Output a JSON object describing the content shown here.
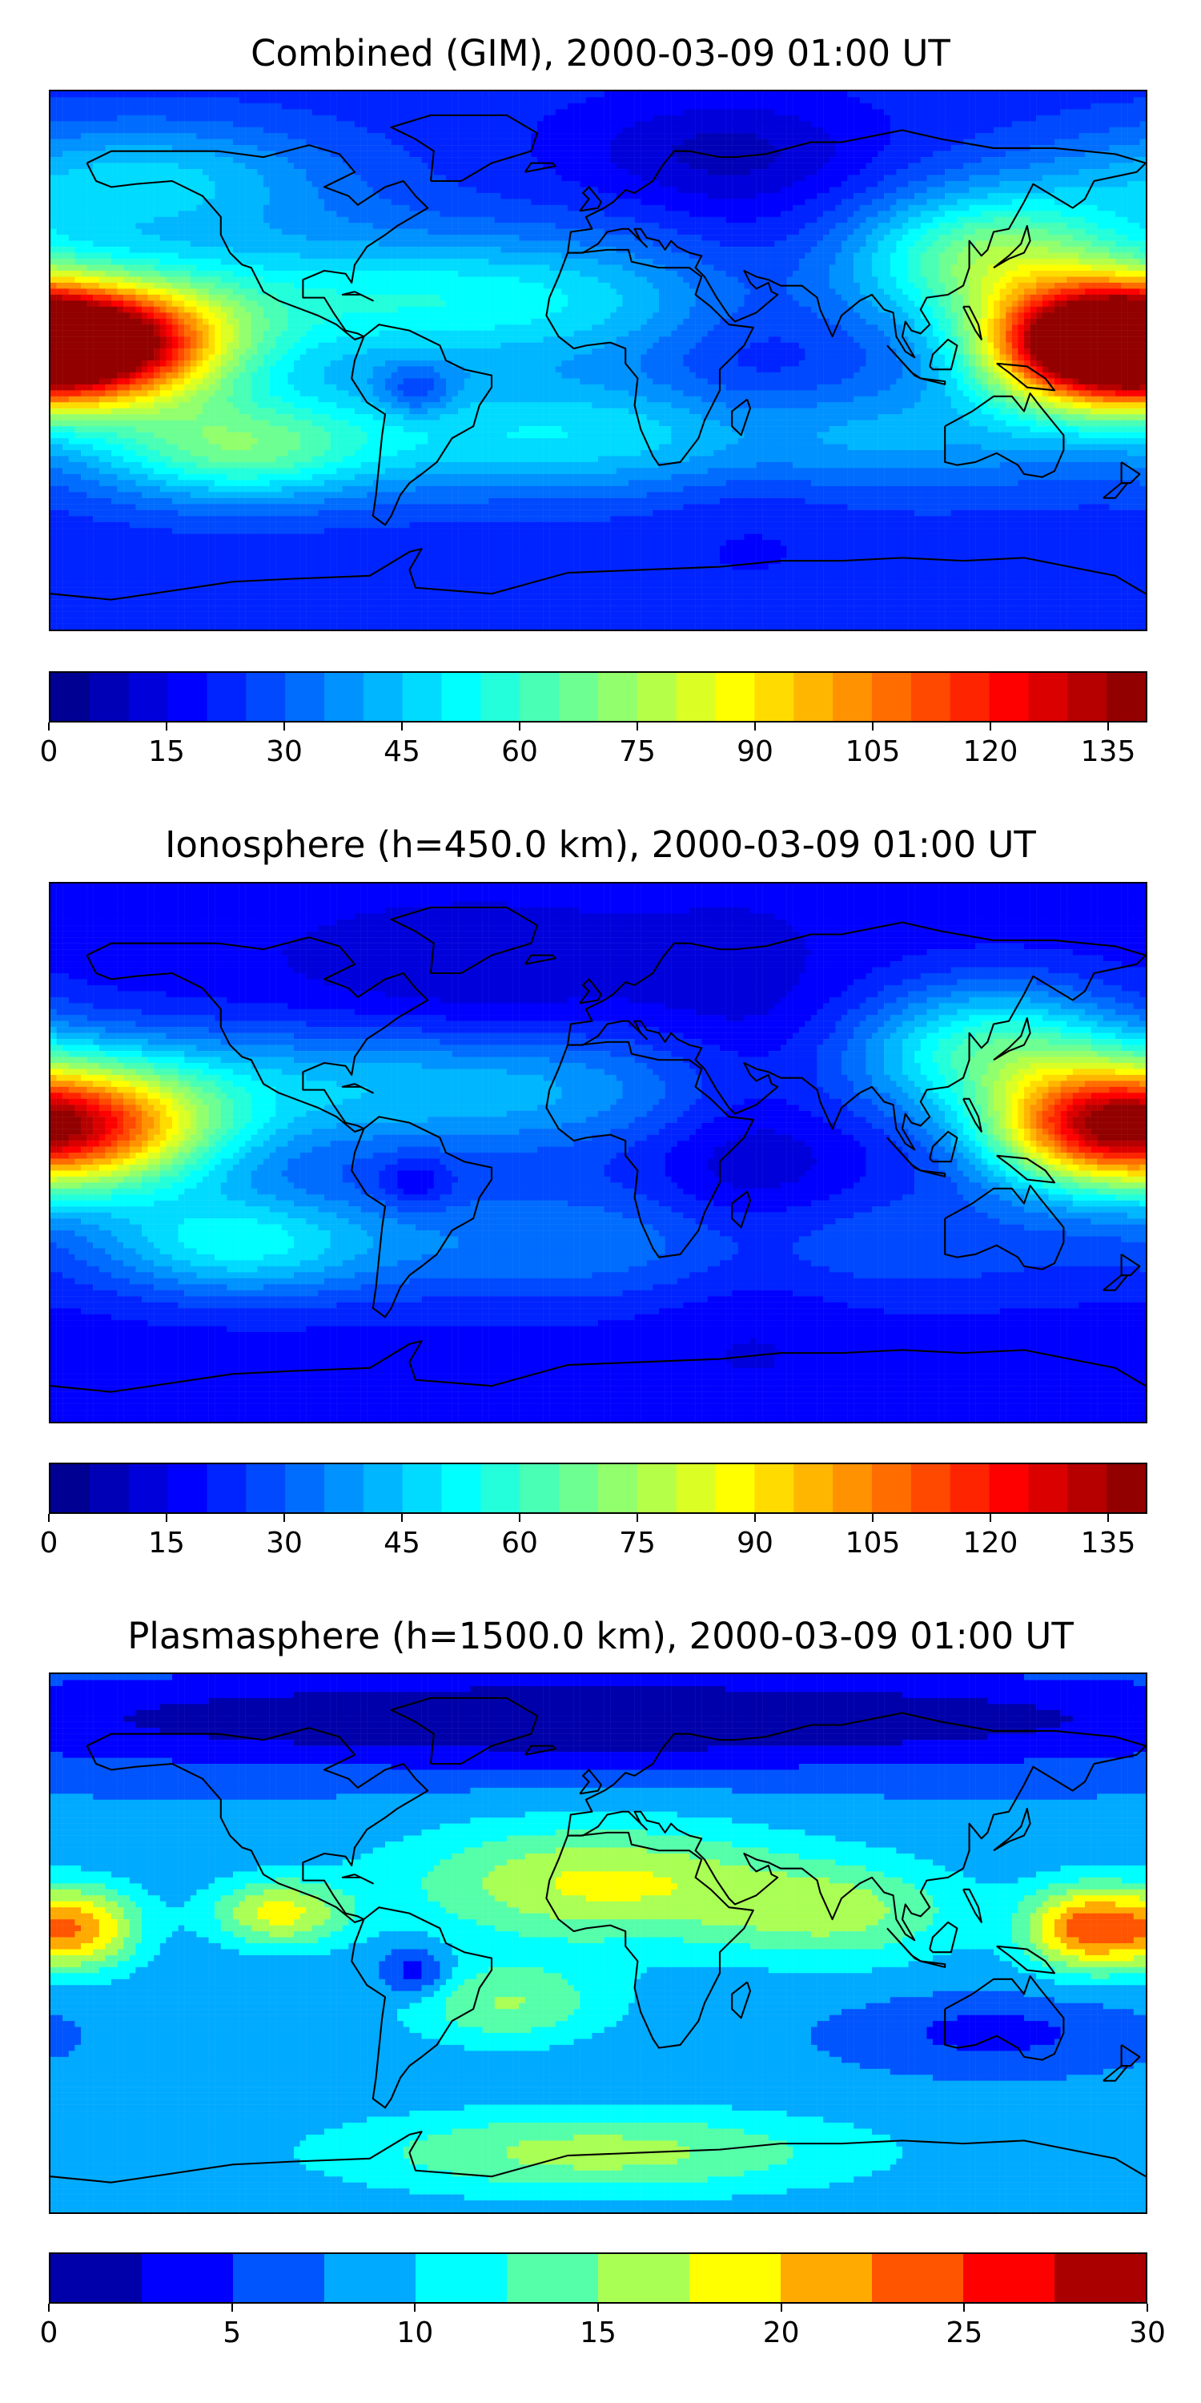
{
  "chart_data": [
    {
      "type": "heatmap",
      "title": "Combined (GIM), 2000-03-09 01:00 UT",
      "xlabel": "",
      "ylabel": "",
      "colormap": "jet",
      "colorbar": {
        "range": [
          0,
          140
        ],
        "levels": 28,
        "ticks": [
          0,
          15,
          30,
          45,
          60,
          75,
          90,
          105,
          120,
          135
        ]
      },
      "base": 22,
      "features": [
        {
          "lon": -165,
          "lat": 5,
          "value": 112,
          "spread_lon": 30,
          "spread_lat": 14
        },
        {
          "lon": 160,
          "lat": 5,
          "value": 100,
          "spread_lon": 25,
          "spread_lat": 14
        },
        {
          "lon": -60,
          "lat": 20,
          "value": 33,
          "spread_lon": 90,
          "spread_lat": 16
        },
        {
          "lon": 130,
          "lat": 35,
          "value": 45,
          "spread_lon": 30,
          "spread_lat": 15
        },
        {
          "lon": 0,
          "lat": -25,
          "value": 28,
          "spread_lon": 120,
          "spread_lat": 14
        },
        {
          "lon": -120,
          "lat": -30,
          "value": 30,
          "spread_lon": 30,
          "spread_lat": 12
        },
        {
          "lon": -150,
          "lat": 60,
          "value": 25,
          "spread_lon": 45,
          "spread_lat": 14
        },
        {
          "lon": -60,
          "lat": -10,
          "value": -16,
          "spread_lon": 8,
          "spread_lat": 6
        },
        {
          "lon": 50,
          "lat": 0,
          "value": -10,
          "spread_lon": 25,
          "spread_lat": 40
        },
        {
          "lon": 40,
          "lat": 70,
          "value": -12,
          "spread_lon": 35,
          "spread_lat": 12
        }
      ]
    },
    {
      "type": "heatmap",
      "title": "Ionosphere  (h=450.0 km), 2000-03-09 01:00 UT",
      "xlabel": "",
      "ylabel": "",
      "colormap": "jet",
      "colorbar": {
        "range": [
          0,
          140
        ],
        "levels": 28,
        "ticks": [
          0,
          15,
          30,
          45,
          60,
          75,
          90,
          105,
          120,
          135
        ]
      },
      "base": 17,
      "features": [
        {
          "lon": -165,
          "lat": 8,
          "value": 75,
          "spread_lon": 30,
          "spread_lat": 15
        },
        {
          "lon": 160,
          "lat": 8,
          "value": 68,
          "spread_lon": 25,
          "spread_lat": 14
        },
        {
          "lon": -60,
          "lat": 22,
          "value": 30,
          "spread_lon": 90,
          "spread_lat": 16
        },
        {
          "lon": 130,
          "lat": 35,
          "value": 40,
          "spread_lon": 30,
          "spread_lat": 15
        },
        {
          "lon": 0,
          "lat": -30,
          "value": 18,
          "spread_lon": 120,
          "spread_lat": 15
        },
        {
          "lon": -120,
          "lat": -30,
          "value": 25,
          "spread_lon": 30,
          "spread_lat": 12
        },
        {
          "lon": -60,
          "lat": -10,
          "value": -12,
          "spread_lon": 8,
          "spread_lat": 6
        },
        {
          "lon": 50,
          "lat": 0,
          "value": -12,
          "spread_lon": 25,
          "spread_lat": 40
        },
        {
          "lon": -40,
          "lat": 50,
          "value": -8,
          "spread_lon": 50,
          "spread_lat": 20
        }
      ]
    },
    {
      "type": "heatmap",
      "title": "Plasmasphere (h=1500.0 km), 2000-03-09 01:00 UT",
      "xlabel": "",
      "ylabel": "",
      "colormap": "jet",
      "colorbar": {
        "range": [
          0,
          30
        ],
        "levels": 12,
        "ticks": [
          0,
          5,
          10,
          15,
          20,
          25,
          30
        ]
      },
      "base": 8,
      "features": [
        {
          "lon": 160,
          "lat": 5,
          "value": 15,
          "spread_lon": 14,
          "spread_lat": 10
        },
        {
          "lon": -170,
          "lat": 5,
          "value": 13,
          "spread_lon": 14,
          "spread_lat": 10
        },
        {
          "lon": -105,
          "lat": 10,
          "value": 10,
          "spread_lon": 16,
          "spread_lat": 8
        },
        {
          "lon": 0,
          "lat": 20,
          "value": 10,
          "spread_lon": 45,
          "spread_lat": 14
        },
        {
          "lon": 80,
          "lat": 10,
          "value": 7,
          "spread_lon": 30,
          "spread_lat": 12
        },
        {
          "lon": -30,
          "lat": -20,
          "value": 7,
          "spread_lon": 25,
          "spread_lat": 10
        },
        {
          "lon": 0,
          "lat": -70,
          "value": 8,
          "spread_lon": 60,
          "spread_lat": 10
        },
        {
          "lon": -60,
          "lat": -10,
          "value": -6,
          "spread_lon": 8,
          "spread_lat": 6
        },
        {
          "lon": 130,
          "lat": -30,
          "value": -4,
          "spread_lon": 30,
          "spread_lat": 8
        },
        {
          "lon": 0,
          "lat": 75,
          "value": -8,
          "spread_lon": 180,
          "spread_lat": 12
        }
      ]
    }
  ],
  "panels": [
    {
      "title": "Combined (GIM), 2000-03-09 01:00 UT"
    },
    {
      "title": "Ionosphere  (h=450.0 km), 2000-03-09 01:00 UT"
    },
    {
      "title": "Plasmasphere (h=1500.0 km), 2000-03-09 01:00 UT"
    }
  ],
  "coastline_color": "#000000"
}
